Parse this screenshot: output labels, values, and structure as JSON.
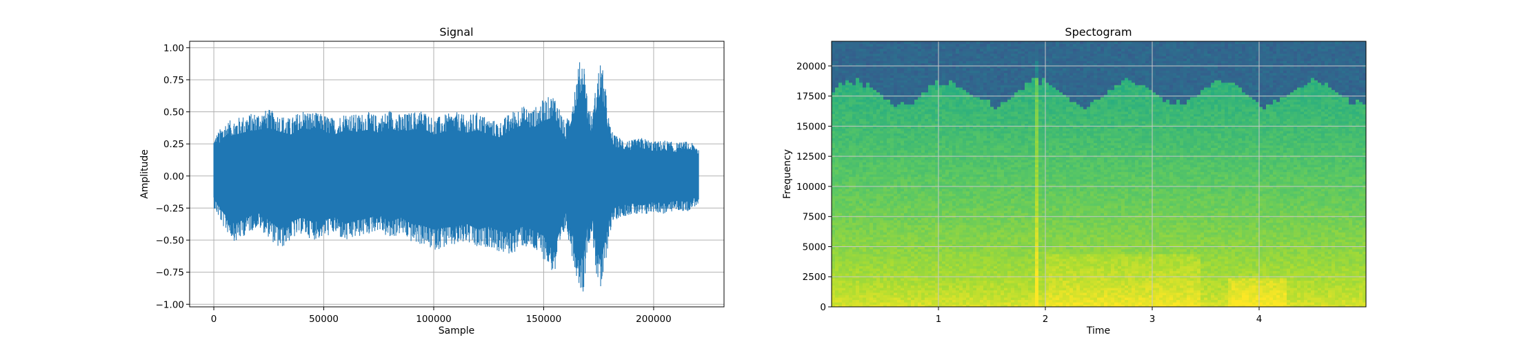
{
  "figure": {
    "background": "#ffffff"
  },
  "chart_data": [
    {
      "type": "line",
      "title": "Signal",
      "xlabel": "Sample",
      "ylabel": "Amplitude",
      "xlim": [
        -11000,
        232000
      ],
      "ylim": [
        -1.02,
        1.05
      ],
      "grid": true,
      "line_color": "#1f77b4",
      "x_ticks": [
        0,
        50000,
        100000,
        150000,
        200000
      ],
      "x_tick_labels": [
        "0",
        "50000",
        "100000",
        "150000",
        "200000"
      ],
      "y_ticks": [
        -1.0,
        -0.75,
        -0.5,
        -0.25,
        0.0,
        0.25,
        0.5,
        0.75,
        1.0
      ],
      "y_tick_labels": [
        "−1.00",
        "−0.75",
        "−0.50",
        "−0.25",
        "0.00",
        "0.25",
        "0.50",
        "0.75",
        "1.00"
      ],
      "series": [
        {
          "x": [
            0,
            5000,
            10000,
            15000,
            20000,
            25000,
            30000,
            35000,
            40000,
            45000,
            50000,
            55000,
            60000,
            65000,
            70000,
            75000,
            80000,
            85000,
            90000,
            95000,
            100000,
            105000,
            110000,
            115000,
            120000,
            125000,
            130000,
            135000,
            140000,
            145000,
            150000,
            155000,
            160000,
            162000,
            164000,
            166000,
            168000,
            170000,
            172000,
            174000,
            176000,
            178000,
            180000,
            182000,
            185000,
            190000,
            195000,
            200000,
            205000,
            210000,
            215000,
            220500
          ],
          "ymax": [
            0.3,
            0.42,
            0.45,
            0.48,
            0.5,
            0.52,
            0.48,
            0.45,
            0.52,
            0.5,
            0.48,
            0.45,
            0.5,
            0.48,
            0.5,
            0.47,
            0.52,
            0.48,
            0.5,
            0.52,
            0.45,
            0.48,
            0.5,
            0.47,
            0.5,
            0.45,
            0.42,
            0.5,
            0.55,
            0.52,
            0.6,
            0.64,
            0.4,
            0.55,
            0.7,
            0.88,
            0.95,
            0.6,
            0.45,
            0.75,
            0.92,
            0.7,
            0.4,
            0.32,
            0.3,
            0.28,
            0.3,
            0.27,
            0.28,
            0.26,
            0.27,
            0.24
          ],
          "ymin": [
            -0.25,
            -0.42,
            -0.52,
            -0.45,
            -0.4,
            -0.48,
            -0.58,
            -0.5,
            -0.45,
            -0.5,
            -0.48,
            -0.45,
            -0.52,
            -0.48,
            -0.46,
            -0.42,
            -0.5,
            -0.45,
            -0.52,
            -0.54,
            -0.58,
            -0.56,
            -0.55,
            -0.52,
            -0.58,
            -0.55,
            -0.6,
            -0.62,
            -0.55,
            -0.58,
            -0.65,
            -0.78,
            -0.4,
            -0.55,
            -0.72,
            -0.85,
            -0.92,
            -0.55,
            -0.45,
            -0.78,
            -0.93,
            -0.7,
            -0.45,
            -0.35,
            -0.32,
            -0.3,
            -0.32,
            -0.28,
            -0.3,
            -0.27,
            -0.28,
            -0.22
          ]
        }
      ]
    },
    {
      "type": "heatmap",
      "title": "Spectogram",
      "xlabel": "Time",
      "ylabel": "Frequency",
      "xlim": [
        0,
        5.0
      ],
      "ylim": [
        0,
        22050
      ],
      "grid": true,
      "colormap": "viridis",
      "x_ticks": [
        1,
        2,
        3,
        4
      ],
      "x_tick_labels": [
        "1",
        "2",
        "3",
        "4"
      ],
      "y_ticks": [
        0,
        2500,
        5000,
        7500,
        10000,
        12500,
        15000,
        17500,
        20000
      ],
      "y_tick_labels": [
        "0",
        "2500",
        "5000",
        "7500",
        "10000",
        "12500",
        "15000",
        "17500",
        "20000"
      ]
    }
  ]
}
